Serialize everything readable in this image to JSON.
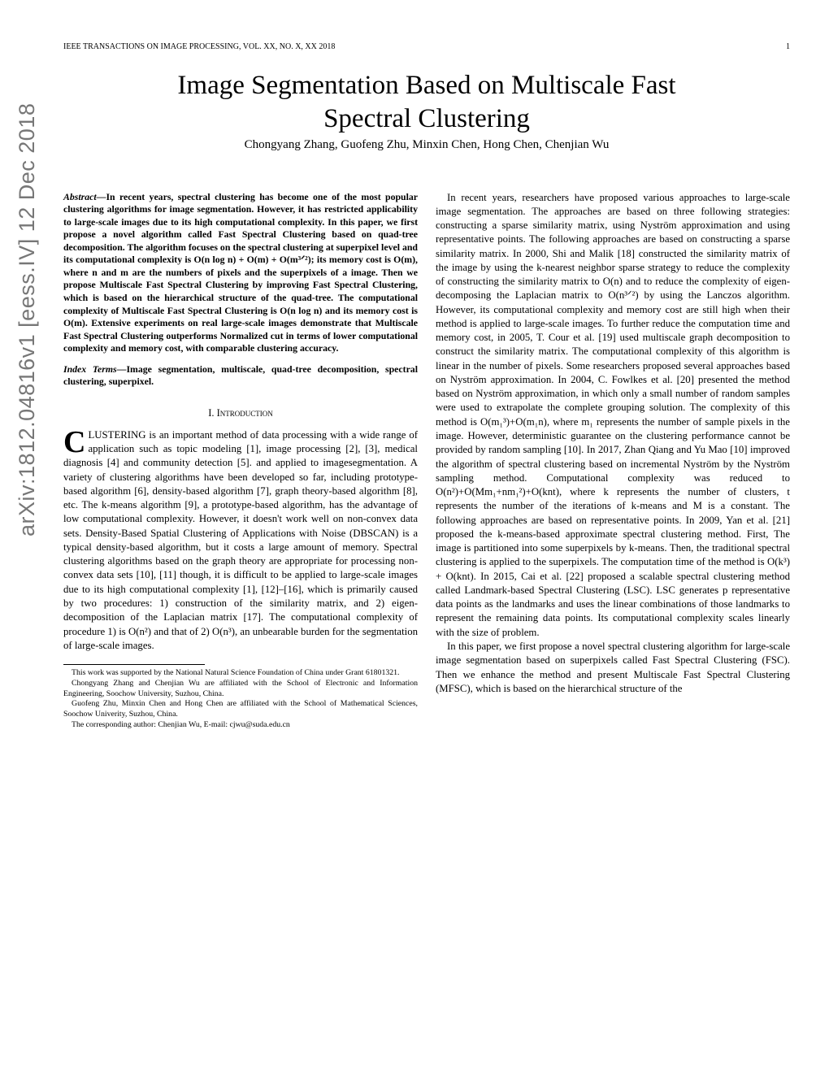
{
  "arxiv": "arXiv:1812.04816v1  [eess.IV]  12 Dec 2018",
  "header": {
    "journal": "IEEE TRANSACTIONS ON IMAGE PROCESSING, VOL. XX, NO. X, XX 2018",
    "page": "1"
  },
  "title_line1": "Image Segmentation Based on Multiscale Fast",
  "title_line2": "Spectral Clustering",
  "authors": "Chongyang Zhang, Guofeng Zhu, Minxin Chen, Hong Chen, Chenjian Wu",
  "abstract_label": "Abstract",
  "abstract_text": "—In recent years, spectral clustering has become one of the most popular clustering algorithms for image segmentation. However, it has restricted applicability to large-scale images due to its high computational complexity. In this paper, we first propose a novel algorithm called Fast Spectral Clustering based on quad-tree decomposition. The algorithm focuses on the spectral clustering at superpixel level and its computational complexity is O(n log n) + O(m) + O(m³ᐟ²); its memory cost is O(m), where n and m are the numbers of pixels and the superpixels of a image. Then we propose Multiscale Fast Spectral Clustering by improving Fast Spectral Clustering, which is based on the hierarchical structure of the quad-tree. The computational complexity of Multiscale Fast Spectral Clustering is O(n log n) and its memory cost is O(m). Extensive experiments on real large-scale images demonstrate that Multiscale Fast Spectral Clustering outperforms Normalized cut in terms of lower computational complexity and memory cost, with comparable clustering accuracy.",
  "index_label": "Index Terms",
  "index_text": "—Image segmentation, multiscale, quad-tree decomposition, spectral clustering, superpixel.",
  "section1": "I.  Introduction",
  "intro_p1_cap": "C",
  "intro_p1": "LUSTERING is an important method of data processing with a wide range of application such as topic modeling [1], image processing [2], [3], medical diagnosis [4] and community detection [5]. and applied to imagesegmentation. A variety of clustering algorithms have been developed so far, including prototype-based algorithm [6], density-based algorithm [7], graph theory-based algorithm [8], etc. The k-means algorithm [9], a prototype-based algorithm, has the advantage of low computational complexity. However, it doesn't work well on non-convex data sets. Density-Based Spatial Clustering of Applications with Noise (DBSCAN) is a typical density-based algorithm, but it costs a large amount of memory. Spectral clustering algorithms based on the graph theory are appropriate for processing non-convex data sets [10], [11] though, it is difficult to be applied to large-scale images due to its high computational complexity [1], [12]–[16], which is primarily caused by two procedures: 1) construction of the similarity matrix, and 2) eigen-decomposition of the Laplacian matrix [17]. The computational complexity of procedure 1) is O(n²) and that of 2) O(n³), an unbearable burden for the segmentation of large-scale images.",
  "footnotes": {
    "f1": "This work was supported by the National Natural Science Foundation of China under Grant 61801321.",
    "f2": "Chongyang Zhang and Chenjian Wu are affiliated with the School of Electronic and Information Engineering, Soochow University, Suzhou, China.",
    "f3": "Guofeng Zhu, Minxin Chen and Hong Chen are affiliated with the School of Mathematical Sciences, Soochow Univerity, Suzhou, China.",
    "f4": "The corresponding author: Chenjian Wu, E-mail: cjwu@suda.edu.cn"
  },
  "right_p1": "In recent years, researchers have proposed various approaches to large-scale image segmentation. The approaches are based on three following strategies: constructing a sparse similarity matrix, using Nyström approximation and using representative points. The following approaches are based on constructing a sparse similarity matrix. In 2000, Shi and Malik [18] constructed the similarity matrix of the image by using the k-nearest neighbor sparse strategy to reduce the complexity of constructing the similarity matrix to O(n) and to reduce the complexity of eigen-decomposing the Laplacian matrix to O(n³ᐟ²) by using the Lanczos algorithm. However, its computational complexity and memory cost are still high when their method is applied to large-scale images. To further reduce the computation time and memory cost, in 2005, T. Cour et al. [19] used multiscale graph decomposition to construct the similarity matrix. The computational complexity of this algorithm is linear in the number of pixels. Some researchers proposed several approaches based on Nyström approximation. In 2004, C. Fowlkes et al. [20] presented the method based on Nyström approximation, in which only a small number of random samples were used to extrapolate the complete grouping solution. The complexity of this method is O(m₁³)+O(m₁n), where m₁ represents the number of sample pixels in the image. However, deterministic guarantee on the clustering performance cannot be provided by random sampling [10]. In 2017, Zhan Qiang and Yu Mao [10] improved the algorithm of spectral clustering based on incremental Nyström by the Nyström sampling method. Computational complexity was reduced to O(n²)+O(Mm₁+nm₁²)+O(knt), where k represents the number of clusters, t represents the number of the iterations of k-means and M is a constant. The following approaches are based on representative points. In 2009, Yan et al. [21] proposed the k-means-based approximate spectral clustering method. First, The image is partitioned into some superpixels by k-means. Then, the traditional spectral clustering is applied to the superpixels. The computation time of the method is O(k³) + O(knt). In 2015, Cai et al. [22] proposed a scalable spectral clustering method called Landmark-based Spectral Clustering (LSC). LSC generates p representative data points as the landmarks and uses the linear combinations of those landmarks to represent the remaining data points. Its computational complexity scales linearly with the size of problem.",
  "right_p2": "In this paper, we first propose a novel spectral clustering algorithm for large-scale image segmentation based on superpixels called Fast Spectral Clustering (FSC). Then we enhance the method and present Multiscale Fast Spectral Clustering (MFSC), which is based on the hierarchical structure of the"
}
